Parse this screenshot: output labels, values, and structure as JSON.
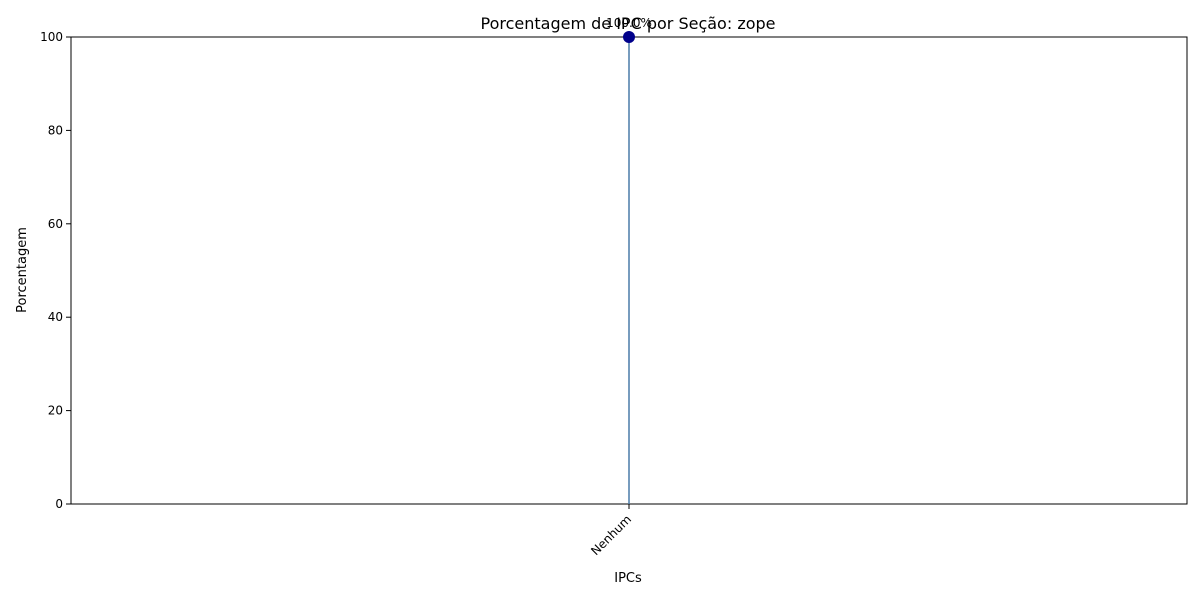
{
  "chart_data": {
    "type": "lollipop",
    "title": "Porcentagem de IPC por Seção: zope",
    "xlabel": "IPCs",
    "ylabel": "Porcentagem",
    "categories": [
      "Nenhum"
    ],
    "values": [
      100.0
    ],
    "data_labels": [
      "100.0%"
    ],
    "ylim": [
      0,
      100
    ],
    "yticks": [
      0,
      20,
      40,
      60,
      80,
      100
    ],
    "grid": false,
    "legend": "none",
    "colors": {
      "stem": "#4a7ca8",
      "marker": "#00008b",
      "axes": "#000000"
    }
  }
}
